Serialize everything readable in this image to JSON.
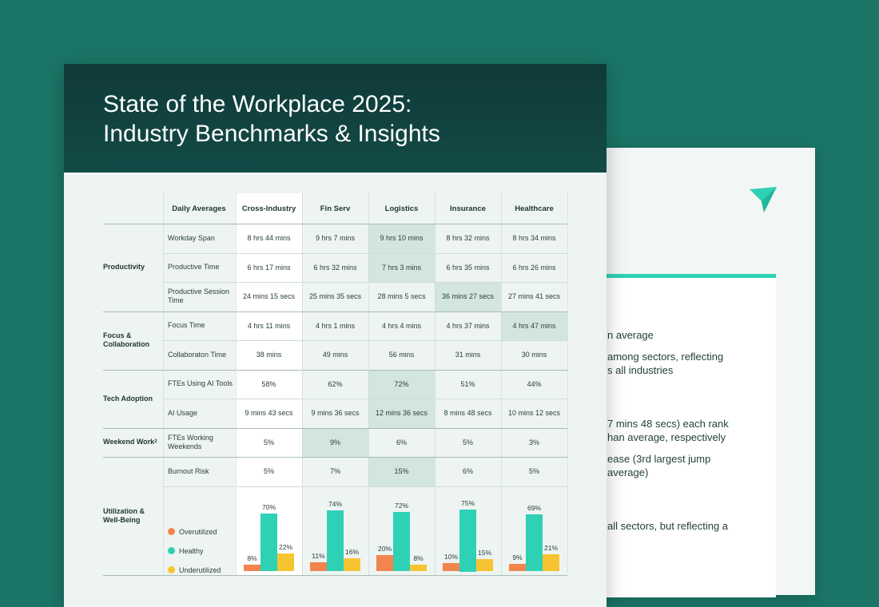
{
  "document": {
    "title_line1": "State of the Workplace 2025:",
    "title_line2": "Industry Benchmarks & Insights"
  },
  "back_page": {
    "lines": [
      "n average",
      "among sectors, reflecting",
      "s all industries",
      "7 mins 48 secs) each rank",
      "han average, respectively",
      "ease (3rd largest jump",
      "average)",
      "all sectors, but reflecting a"
    ]
  },
  "table": {
    "corner_header": "Daily Averages",
    "columns": [
      "Cross-Industry",
      "Fin Serv",
      "Logistics",
      "Insurance",
      "Healthcare"
    ],
    "categories": [
      {
        "label": "Productivity"
      },
      {
        "label": "Focus & Collaboration"
      },
      {
        "label": "Tech Adoption"
      },
      {
        "label": "Weekend Work",
        "sup": "2"
      },
      {
        "label": "Utilization & Well-Being"
      }
    ],
    "rows": [
      {
        "metric": "Workday Span",
        "values": [
          "8 hrs 44 mins",
          "9 hrs 7 mins",
          "9 hrs 10 mins",
          "8 hrs 32 mins",
          "8 hrs 34 mins"
        ],
        "highlight": 2
      },
      {
        "metric": "Productive Time",
        "values": [
          "6 hrs 17 mins",
          "6 hrs 32 mins",
          "7 hrs 3 mins",
          "6 hrs 35 mins",
          "6 hrs 26 mins"
        ],
        "highlight": 2
      },
      {
        "metric": "Productive Session Time",
        "values": [
          "24 mins 15 secs",
          "25 mins 35 secs",
          "28 mins 5 secs",
          "36 mins 27 secs",
          "27 mins 41 secs"
        ],
        "highlight": 3
      },
      {
        "metric": "Focus Time",
        "values": [
          "4 hrs 11 mins",
          "4 hrs 1 mins",
          "4 hrs 4 mins",
          "4 hrs 37 mins",
          "4 hrs 47 mins"
        ],
        "highlight": 4
      },
      {
        "metric": "Collaboraton Time",
        "values": [
          "38 mins",
          "49 mins",
          "56 mins",
          "31 mins",
          "30 mins"
        ],
        "highlight": -1
      },
      {
        "metric": "FTEs Using AI Tools",
        "values": [
          "58%",
          "62%",
          "72%",
          "51%",
          "44%"
        ],
        "highlight": 2
      },
      {
        "metric": "AI Usage",
        "values": [
          "9 mins 43 secs",
          "9 mins 36 secs",
          "12 mins 36 secs",
          "8 mins 48 secs",
          "10 mins 12 secs"
        ],
        "highlight": 2
      },
      {
        "metric": "FTEs Working Weekends",
        "values": [
          "5%",
          "9%",
          "6%",
          "5%",
          "3%"
        ],
        "highlight": 1
      },
      {
        "metric": "Burnout Risk",
        "values": [
          "5%",
          "7%",
          "15%",
          "6%",
          "5%"
        ],
        "highlight": 2
      }
    ],
    "utilization": {
      "legend": [
        {
          "label": "Overutilized",
          "color": "#f2844e"
        },
        {
          "label": "Healthy",
          "color": "#2fd1b5"
        },
        {
          "label": "Underutilized",
          "color": "#f7c431"
        }
      ],
      "groups": [
        {
          "over": 8,
          "healthy": 70,
          "under": 22,
          "over_label": "8%",
          "healthy_label": "70%",
          "under_label": "22%"
        },
        {
          "over": 11,
          "healthy": 74,
          "under": 16,
          "over_label": "11%",
          "healthy_label": "74%",
          "under_label": "16%"
        },
        {
          "over": 20,
          "healthy": 72,
          "under": 8,
          "over_label": "20%",
          "healthy_label": "72%",
          "under_label": "8%"
        },
        {
          "over": 10,
          "healthy": 75,
          "under": 15,
          "over_label": "10%",
          "healthy_label": "75%",
          "under_label": "15%"
        },
        {
          "over": 9,
          "healthy": 69,
          "under": 21,
          "over_label": "9%",
          "healthy_label": "69%",
          "under_label": "21%"
        }
      ]
    }
  }
}
